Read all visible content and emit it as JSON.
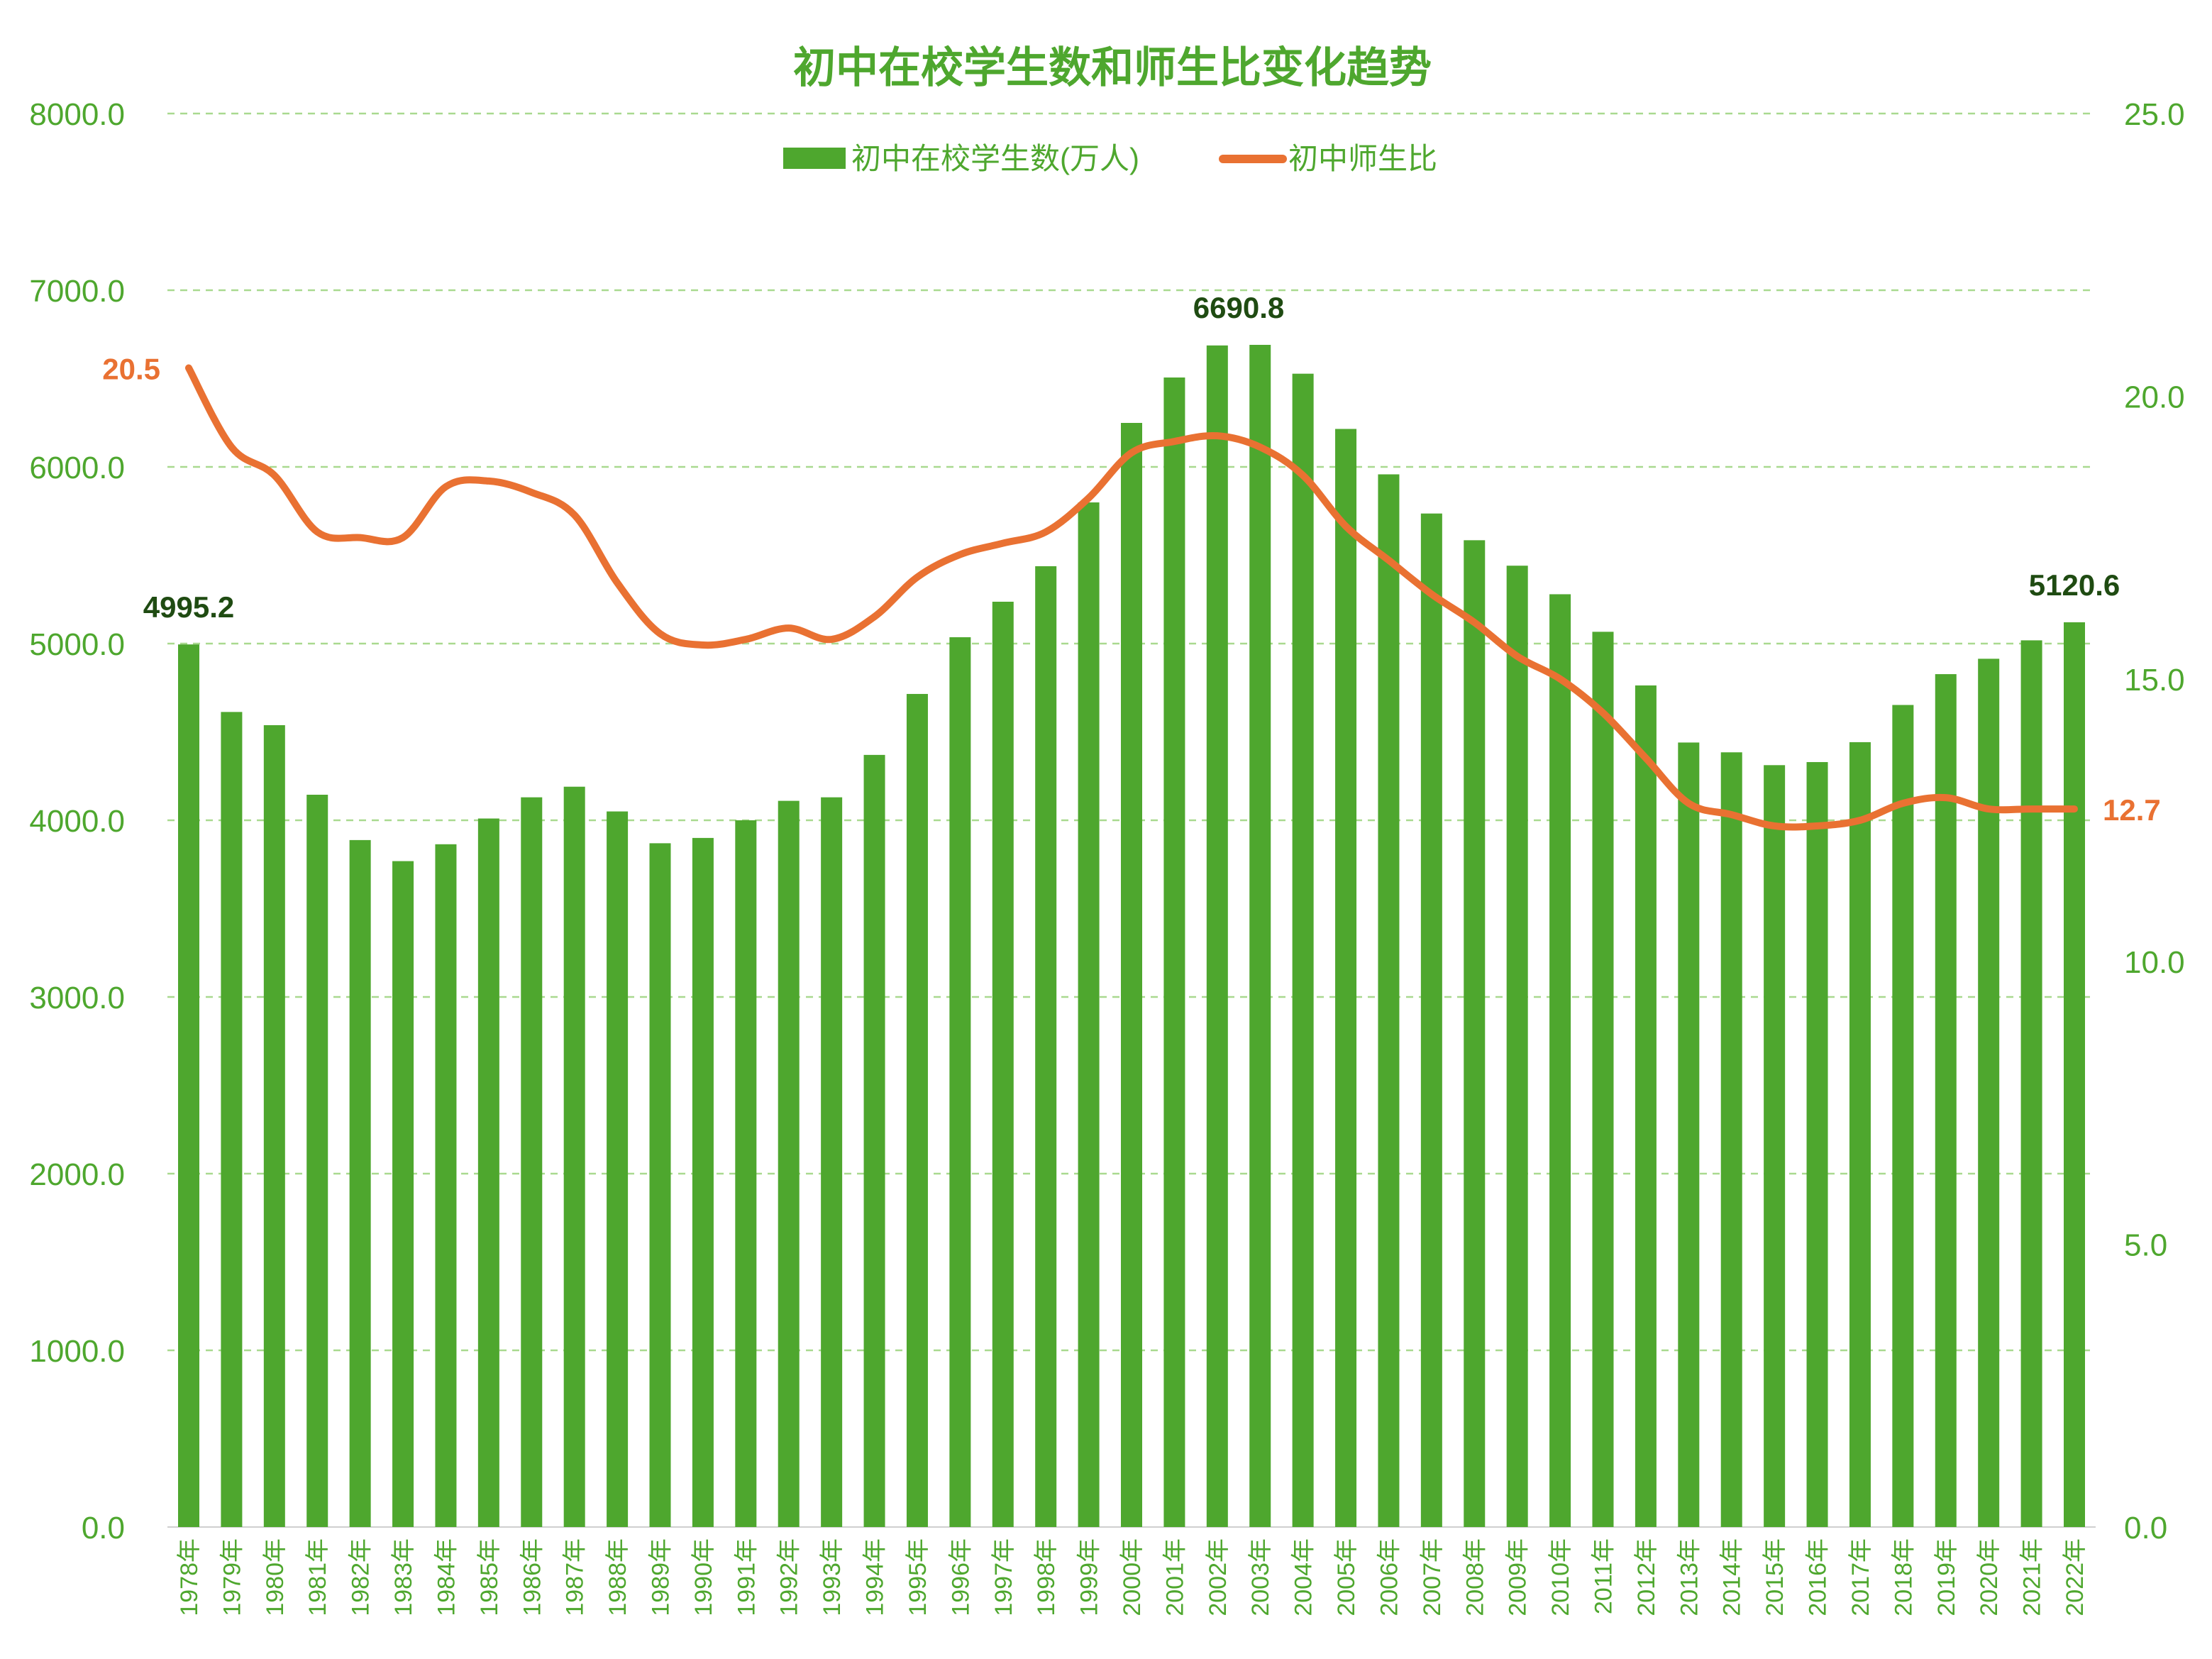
{
  "chart_data": {
    "type": "bar+line",
    "title": "初中在校学生数和师生比变化趋势",
    "categories": [
      "1978年",
      "1979年",
      "1980年",
      "1981年",
      "1982年",
      "1983年",
      "1984年",
      "1985年",
      "1986年",
      "1987年",
      "1988年",
      "1989年",
      "1990年",
      "1991年",
      "1992年",
      "1993年",
      "1994年",
      "1995年",
      "1996年",
      "1997年",
      "1998年",
      "1999年",
      "2000年",
      "2001年",
      "2002年",
      "2003年",
      "2004年",
      "2005年",
      "2006年",
      "2007年",
      "2008年",
      "2009年",
      "2010年",
      "2011年",
      "2012年",
      "2013年",
      "2014年",
      "2015年",
      "2016年",
      "2017年",
      "2018年",
      "2019年",
      "2020年",
      "2021年",
      "2022年"
    ],
    "series": [
      {
        "name": "初中在校学生数(万人)",
        "type": "bar",
        "axis": "left",
        "color": "#4ea72e",
        "values": [
          4995.2,
          4613.0,
          4538.3,
          4144.6,
          3888.0,
          3768.8,
          3864.3,
          4010.0,
          4130,
          4190,
          4050,
          3870,
          3900,
          4000,
          4110,
          4130,
          4370,
          4715,
          5036,
          5237,
          5438,
          5799,
          6249,
          6506,
          6687.4,
          6690.8,
          6527.5,
          6214.9,
          5957.9,
          5736.2,
          5585.0,
          5440.9,
          5279.3,
          5066.8,
          4763.1,
          4440.1,
          4384.6,
          4312.0,
          4329.4,
          4442.1,
          4652.6,
          4827.1,
          4914.1,
          5018.4,
          5120.6
        ]
      },
      {
        "name": "初中师生比",
        "type": "line",
        "axis": "right",
        "color": "#e97132",
        "values": [
          20.5,
          19.1,
          18.6,
          17.6,
          17.5,
          17.5,
          18.4,
          18.5,
          18.3,
          17.9,
          16.7,
          15.8,
          15.6,
          15.7,
          15.9,
          15.7,
          16.1,
          16.8,
          17.2,
          17.4,
          17.6,
          18.2,
          19.0,
          19.2,
          19.3,
          19.1,
          18.6,
          17.7,
          17.1,
          16.5,
          16.0,
          15.4,
          15.0,
          14.4,
          13.6,
          12.8,
          12.6,
          12.4,
          12.4,
          12.5,
          12.8,
          12.9,
          12.7,
          12.7,
          12.7
        ]
      }
    ],
    "y_left": {
      "range": [
        0,
        8000
      ],
      "ticks": [
        "0.0",
        "1000.0",
        "2000.0",
        "3000.0",
        "4000.0",
        "5000.0",
        "6000.0",
        "7000.0",
        "8000.0"
      ]
    },
    "y_right": {
      "range": [
        0,
        25
      ],
      "ticks": [
        "0.0",
        "5.0",
        "10.0",
        "15.0",
        "20.0",
        "25.0"
      ]
    },
    "data_labels": [
      {
        "series": 0,
        "index": 0,
        "text": "4995.2"
      },
      {
        "series": 0,
        "index": 25,
        "text": "6690.8"
      },
      {
        "series": 0,
        "index": 44,
        "text": "5120.6"
      },
      {
        "series": 1,
        "index": 0,
        "text": "20.5"
      },
      {
        "series": 1,
        "index": 44,
        "text": "12.7"
      }
    ],
    "grid": true,
    "legend": "top"
  }
}
